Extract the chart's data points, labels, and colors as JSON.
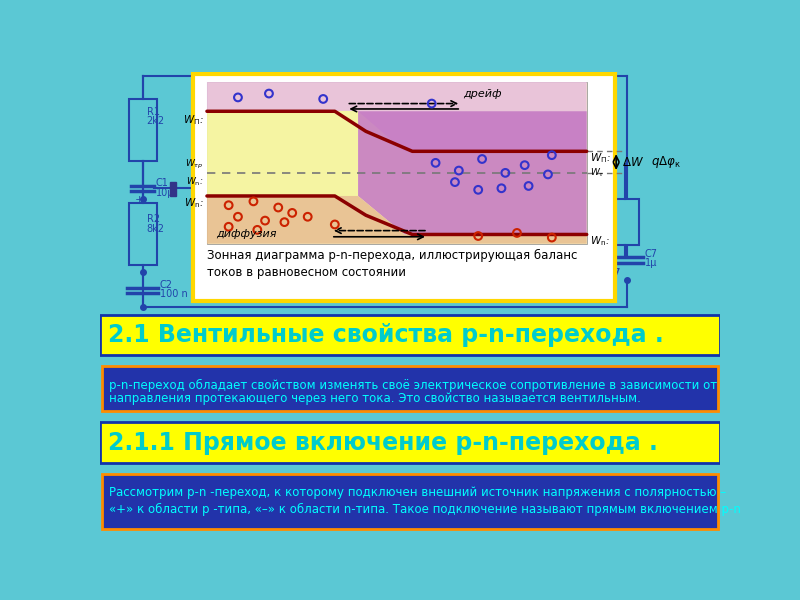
{
  "bg_color": "#5BC8D4",
  "yellow_border_color": "#FFD700",
  "white_panel_bg": "#FFFFFF",
  "diagram_bg_yellow": "#F0F0A0",
  "pink_zone_color": "#E8B8D8",
  "purple_zone_color": "#C080C0",
  "peach_zone_color": "#E8B870",
  "band_line_color": "#8B0000",
  "yellow_banner1_bg": "#FFFF00",
  "yellow_banner1_text": "2.1 Вентильные свойства p-n-перехода .",
  "yellow_banner1_color": "#00CCCC",
  "yellow_banner2_bg": "#FFFF00",
  "yellow_banner2_text": "2.1.1 Прямое включение p-n-перехода .",
  "yellow_banner2_color": "#00CCCC",
  "blue_banner1_bg": "#2233AA",
  "blue_banner1_border": "#FF8C00",
  "blue_banner1_text1": "р-n-переход обладает свойством изменять своё электрическое сопротивление в зависимости от",
  "blue_banner1_text2": "направления протекающего через него тока. Это свойство называется вентильным.",
  "blue_banner1_color": "#00FFFF",
  "blue_banner2_bg": "#2233AA",
  "blue_banner2_border": "#FF8C00",
  "blue_banner2_text1": "Рассмотрим р-n -переход, к которому подключен внешний источник напряжения с полярностью –",
  "blue_banner2_text2": "«+» к области р -типа, «–» к области n-типа. Такое подключение называют прямым включением р-n",
  "blue_banner2_color": "#00FFFF",
  "caption_text": "Зонная диаграмма p-n-перехода, иллюстрирующая баланс\nтоков в равновесном состоянии",
  "caption_color": "#000000"
}
